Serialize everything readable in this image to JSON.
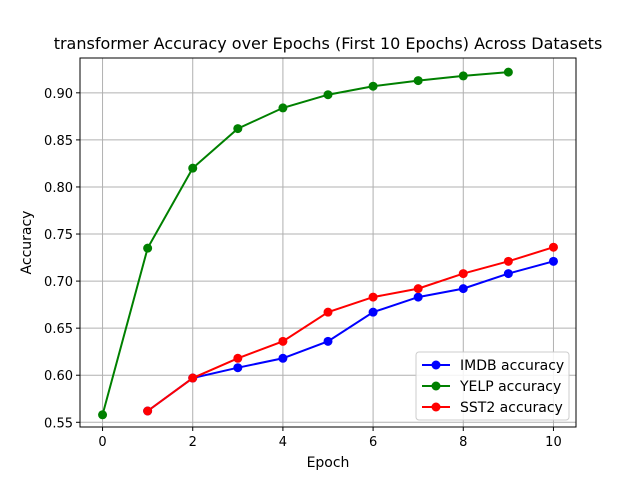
{
  "chart_data": {
    "type": "line",
    "title": "transformer Accuracy over Epochs (First 10 Epochs) Across Datasets",
    "xlabel": "Epoch",
    "ylabel": "Accuracy",
    "xlim": [
      -0.5,
      10.5
    ],
    "ylim": [
      0.545,
      0.937
    ],
    "x_ticks": [
      0,
      2,
      4,
      6,
      8,
      10
    ],
    "y_ticks": [
      0.55,
      0.6,
      0.65,
      0.7,
      0.75,
      0.8,
      0.85,
      0.9
    ],
    "grid": true,
    "legend_position": "lower-right",
    "series": [
      {
        "name": "IMDB accuracy",
        "color": "#0000ff",
        "x": [
          1,
          2,
          3,
          4,
          5,
          6,
          7,
          8,
          9,
          10
        ],
        "y": [
          0.562,
          0.597,
          0.608,
          0.618,
          0.636,
          0.667,
          0.683,
          0.692,
          0.708,
          0.721
        ]
      },
      {
        "name": "YELP accuracy",
        "color": "#008000",
        "x": [
          0,
          1,
          2,
          3,
          4,
          5,
          6,
          7,
          8,
          9
        ],
        "y": [
          0.558,
          0.735,
          0.82,
          0.862,
          0.884,
          0.898,
          0.907,
          0.913,
          0.918,
          0.922
        ]
      },
      {
        "name": "SST2 accuracy",
        "color": "#ff0000",
        "x": [
          1,
          2,
          3,
          4,
          5,
          6,
          7,
          8,
          9,
          10
        ],
        "y": [
          0.562,
          0.597,
          0.618,
          0.636,
          0.667,
          0.683,
          0.692,
          0.708,
          0.721,
          0.736
        ]
      }
    ]
  }
}
